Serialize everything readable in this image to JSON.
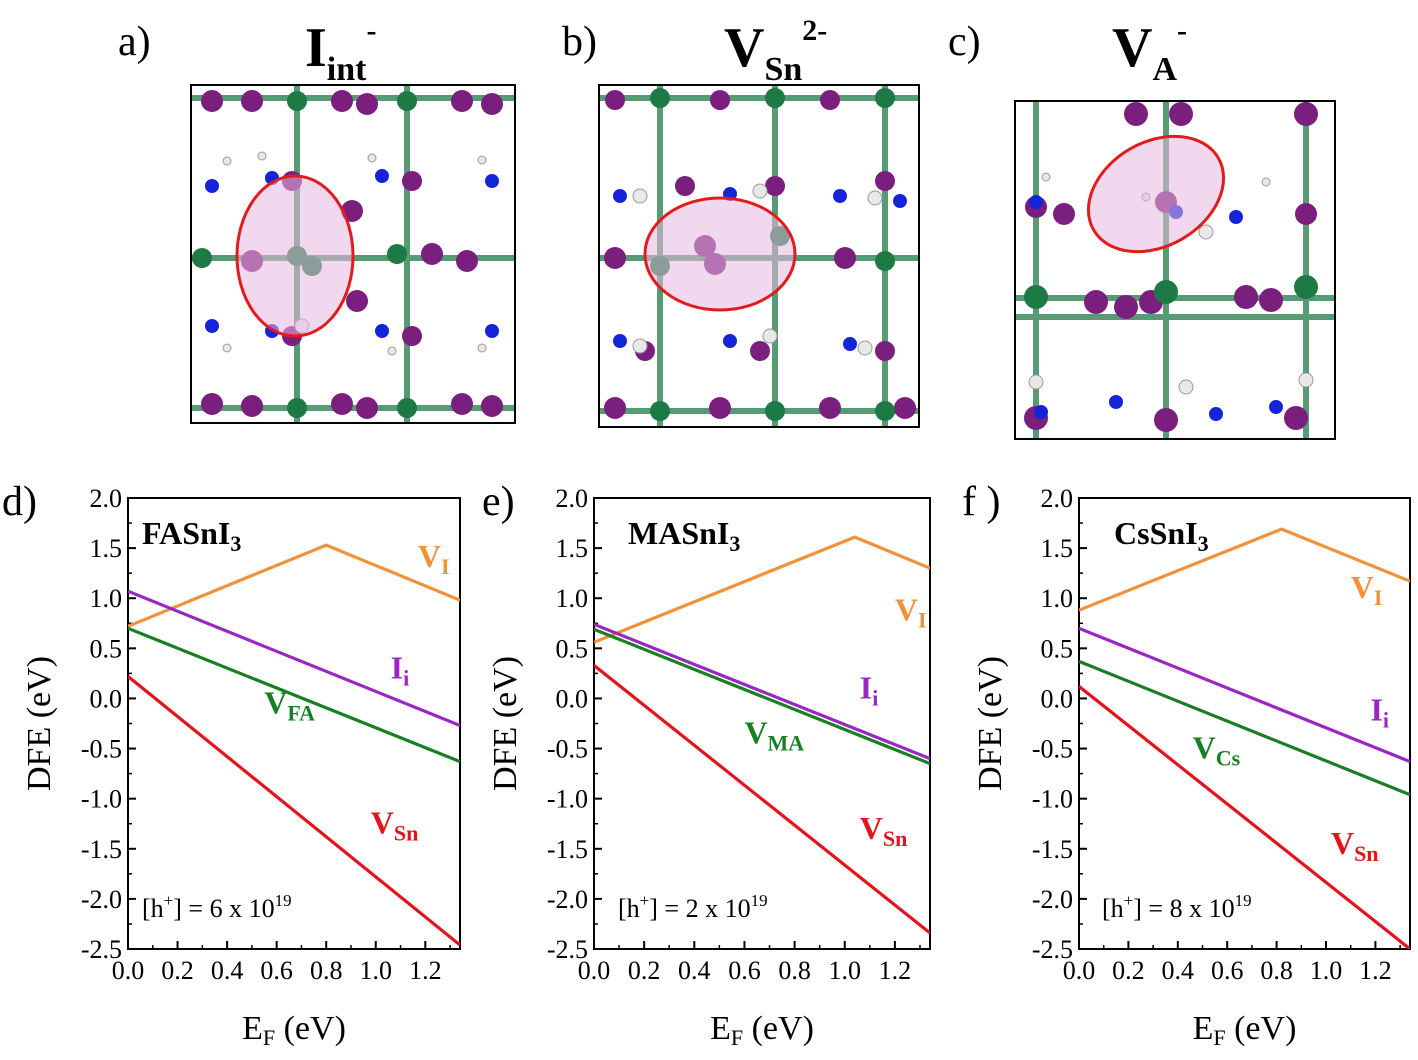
{
  "structures": [
    {
      "letter": "a)",
      "defect": "I",
      "defect_sub": "int",
      "defect_sup": "-"
    },
    {
      "letter": "b)",
      "defect": "V",
      "defect_sub": "Sn",
      "defect_sup": "2-"
    },
    {
      "letter": "c)",
      "defect": "V",
      "defect_sub": "A",
      "defect_sup": "-"
    }
  ],
  "colors": {
    "V_I": "#f0923a",
    "I_i": "#9a27c4",
    "V_A": "#1a7f24",
    "V_Sn": "#e3141c",
    "iodine": "#7a1f7e",
    "tin": "#1e7a45",
    "nitrogen": "#1424d6",
    "carbon": "#a8a8a8",
    "defect_ring": "#e01c1c"
  },
  "chart_data": [
    {
      "type": "line",
      "letter": "d)",
      "material": "FASnI",
      "material_sub": "3",
      "xlabel": "E",
      "xlabel_sub": "F",
      "xlabel_unit": " (eV)",
      "ylabel": "DFE (eV)",
      "xlim": [
        0,
        1.34
      ],
      "ylim": [
        -2.5,
        2.0
      ],
      "xticks": [
        "0.0",
        "0.2",
        "0.4",
        "0.6",
        "0.8",
        "1.0",
        "1.2"
      ],
      "yticks": [
        "-2.5",
        "-2.0",
        "-1.5",
        "-1.0",
        "-0.5",
        "0.0",
        "0.5",
        "1.0",
        "1.5",
        "2.0"
      ],
      "annotation": {
        "prefix": "[h",
        "sup1": "+",
        "mid": "] = 6 x 10",
        "sup2": "19"
      },
      "series": [
        {
          "key": "V_I",
          "name": "V",
          "sub": "I",
          "x": [
            0,
            0.8,
            1.34
          ],
          "y": [
            0.72,
            1.53,
            0.98
          ],
          "label_at": [
            1.17,
            1.31
          ]
        },
        {
          "key": "I_i",
          "name": "I",
          "sub": "i",
          "x": [
            0,
            1.34
          ],
          "y": [
            1.07,
            -0.27
          ],
          "label_at": [
            1.06,
            0.2
          ]
        },
        {
          "key": "V_A",
          "name": "V",
          "sub": "FA",
          "x": [
            0,
            1.34
          ],
          "y": [
            0.7,
            -0.63
          ],
          "label_at": [
            0.55,
            -0.15
          ]
        },
        {
          "key": "V_Sn",
          "name": "V",
          "sub": "Sn",
          "x": [
            0,
            1.34
          ],
          "y": [
            0.22,
            -2.46
          ],
          "label_at": [
            0.98,
            -1.35
          ]
        }
      ]
    },
    {
      "type": "line",
      "letter": "e)",
      "material": "MASnI",
      "material_sub": "3",
      "xlabel": "E",
      "xlabel_sub": "F",
      "xlabel_unit": " (eV)",
      "ylabel": "DFE (eV)",
      "xlim": [
        0,
        1.34
      ],
      "ylim": [
        -2.5,
        2.0
      ],
      "xticks": [
        "0.0",
        "0.2",
        "0.4",
        "0.6",
        "0.8",
        "1.0",
        "1.2"
      ],
      "yticks": [
        "-2.5",
        "-2.0",
        "-1.5",
        "-1.0",
        "-0.5",
        "0.0",
        "0.5",
        "1.0",
        "1.5",
        "2.0"
      ],
      "annotation": {
        "prefix": "[h",
        "sup1": "+",
        "mid": "] = 2 x 10",
        "sup2": "19"
      },
      "series": [
        {
          "key": "V_I",
          "name": "V",
          "sub": "I",
          "x": [
            0,
            1.04,
            1.34
          ],
          "y": [
            0.56,
            1.61,
            1.3
          ],
          "label_at": [
            1.2,
            0.78
          ]
        },
        {
          "key": "I_i",
          "name": "I",
          "sub": "i",
          "x": [
            0,
            1.34
          ],
          "y": [
            0.74,
            -0.6
          ],
          "label_at": [
            1.06,
            0.0
          ]
        },
        {
          "key": "V_A",
          "name": "V",
          "sub": "MA",
          "x": [
            0,
            1.34
          ],
          "y": [
            0.69,
            -0.65
          ],
          "label_at": [
            0.6,
            -0.45
          ]
        },
        {
          "key": "V_Sn",
          "name": "V",
          "sub": "Sn",
          "x": [
            0,
            1.34
          ],
          "y": [
            0.33,
            -2.34
          ],
          "label_at": [
            1.06,
            -1.4
          ]
        }
      ]
    },
    {
      "type": "line",
      "letter": "f )",
      "material": "CsSnI",
      "material_sub": "3",
      "xlabel": "E",
      "xlabel_sub": "F",
      "xlabel_unit": " (eV)",
      "ylabel": "DFE (eV)",
      "xlim": [
        0,
        1.34
      ],
      "ylim": [
        -2.5,
        2.0
      ],
      "xticks": [
        "0.0",
        "0.2",
        "0.4",
        "0.6",
        "0.8",
        "1.0",
        "1.2"
      ],
      "yticks": [
        "-2.5",
        "-2.0",
        "-1.5",
        "-1.0",
        "-0.5",
        "0.0",
        "0.5",
        "1.0",
        "1.5",
        "2.0"
      ],
      "annotation": {
        "prefix": "[h",
        "sup1": "+",
        "mid": "] = 8 x 10",
        "sup2": "19"
      },
      "series": [
        {
          "key": "V_I",
          "name": "V",
          "sub": "I",
          "x": [
            0,
            0.82,
            1.34
          ],
          "y": [
            0.88,
            1.69,
            1.17
          ],
          "label_at": [
            1.1,
            1.0
          ]
        },
        {
          "key": "I_i",
          "name": "I",
          "sub": "i",
          "x": [
            0,
            1.34
          ],
          "y": [
            0.7,
            -0.63
          ],
          "label_at": [
            1.18,
            -0.22
          ]
        },
        {
          "key": "V_A",
          "name": "V",
          "sub": "Cs",
          "x": [
            0,
            1.34
          ],
          "y": [
            0.37,
            -0.96
          ],
          "label_at": [
            0.46,
            -0.6
          ]
        },
        {
          "key": "V_Sn",
          "name": "V",
          "sub": "Sn",
          "x": [
            0,
            1.34
          ],
          "y": [
            0.12,
            -2.5
          ],
          "label_at": [
            1.02,
            -1.55
          ]
        }
      ]
    }
  ]
}
